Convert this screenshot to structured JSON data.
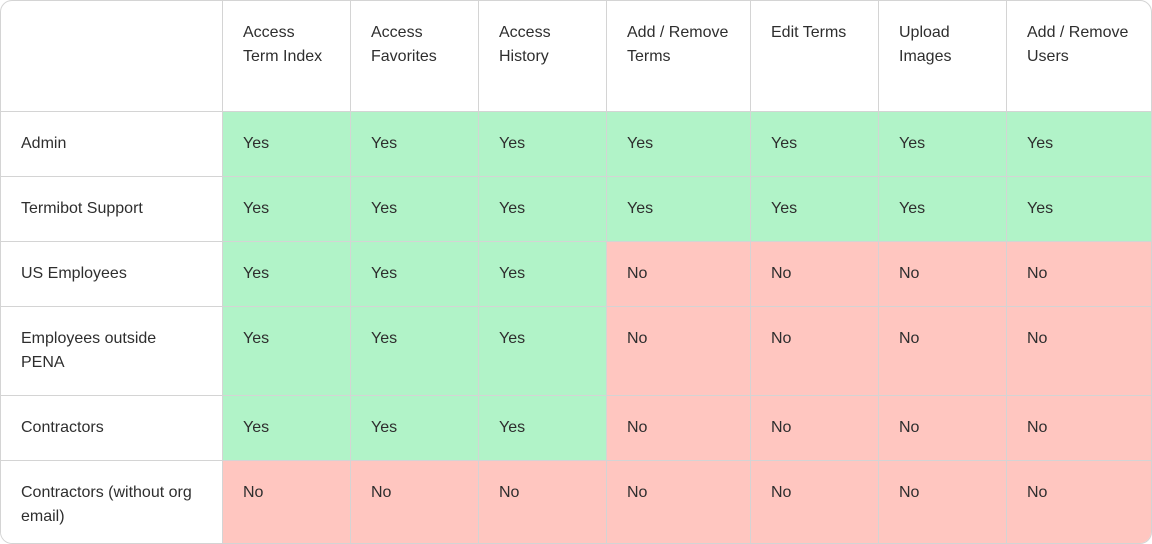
{
  "table": {
    "columns": [
      "Access Term Index",
      "Access Favorites",
      "Access History",
      "Add / Remove Terms",
      "Edit Terms",
      "Upload Images",
      "Add / Remove Users"
    ],
    "rows": [
      {
        "label": "Admin",
        "cells": [
          "Yes",
          "Yes",
          "Yes",
          "Yes",
          "Yes",
          "Yes",
          "Yes"
        ]
      },
      {
        "label": "Termibot Support",
        "cells": [
          "Yes",
          "Yes",
          "Yes",
          "Yes",
          "Yes",
          "Yes",
          "Yes"
        ]
      },
      {
        "label": "US Employees",
        "cells": [
          "Yes",
          "Yes",
          "Yes",
          "No",
          "No",
          "No",
          "No"
        ]
      },
      {
        "label": "Employees outside PENA",
        "cells": [
          "Yes",
          "Yes",
          "Yes",
          "No",
          "No",
          "No",
          "No"
        ]
      },
      {
        "label": "Contractors",
        "cells": [
          "Yes",
          "Yes",
          "Yes",
          "No",
          "No",
          "No",
          "No"
        ]
      },
      {
        "label": "Contractors (without org email)",
        "cells": [
          "No",
          "No",
          "No",
          "No",
          "No",
          "No",
          "No"
        ]
      }
    ],
    "cell_colors": {
      "Yes": "#b1f3c8",
      "No": "#ffc6c0"
    }
  }
}
